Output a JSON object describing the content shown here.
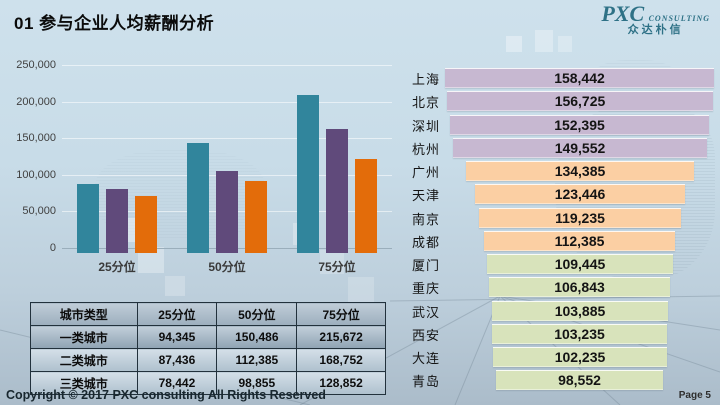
{
  "slide": {
    "title": "01 参与企业人均薪酬分析",
    "copyright": "Copyright © 2017 PXC consulting All Rights Reserved",
    "page_label": "Page 5"
  },
  "logo": {
    "name": "PXC",
    "subtitle": "CONSULTING",
    "chinese": "众达朴信",
    "color": "#2E7186"
  },
  "chart_data": [
    {
      "type": "bar",
      "title": "",
      "categories": [
        "25分位",
        "50分位",
        "75分位"
      ],
      "series": [
        {
          "name": "一类城市",
          "color": "#31859C",
          "values": [
            94345,
            150486,
            215672
          ]
        },
        {
          "name": "二类城市",
          "color": "#604A7B",
          "values": [
            87436,
            112385,
            168752
          ]
        },
        {
          "name": "三类城市",
          "color": "#E36C0A",
          "values": [
            78442,
            98855,
            128852
          ]
        }
      ],
      "ylim": [
        0,
        250000
      ],
      "yticks": [
        "250,000",
        "200,000",
        "150,000",
        "100,000",
        "50,000",
        "0"
      ],
      "grid": true,
      "legend_position": "none"
    },
    {
      "type": "funnel-bar",
      "title": "",
      "categories": [
        "上海",
        "北京",
        "深圳",
        "杭州",
        "广州",
        "天津",
        "南京",
        "成都",
        "厦门",
        "重庆",
        "武汉",
        "西安",
        "大连",
        "青岛"
      ],
      "values": [
        158442,
        156725,
        152395,
        149552,
        134385,
        123446,
        119235,
        112385,
        109445,
        106843,
        103885,
        103235,
        102235,
        98552
      ],
      "labels": [
        "158,442",
        "156,725",
        "152,395",
        "149,552",
        "134,385",
        "123,446",
        "119,235",
        "112,385",
        "109,445",
        "106,843",
        "103,885",
        "103,235",
        "102,235",
        "98,552"
      ],
      "colors": [
        "#C7B8D1",
        "#C7B8D1",
        "#C7B8D1",
        "#C7B8D1",
        "#FBCFA3",
        "#FBCFA3",
        "#FBCFA3",
        "#FBCFA3",
        "#D8E3BB",
        "#D8E3BB",
        "#D8E3BB",
        "#D8E3BB",
        "#D8E3BB",
        "#D8E3BB"
      ]
    }
  ],
  "table": {
    "headers": [
      "城市类型",
      "25分位",
      "50分位",
      "75分位"
    ],
    "rows": [
      [
        "一类城市",
        "94,345",
        "150,486",
        "215,672"
      ],
      [
        "二类城市",
        "87,436",
        "112,385",
        "168,752"
      ],
      [
        "三类城市",
        "78,442",
        "98,855",
        "128,852"
      ]
    ]
  }
}
